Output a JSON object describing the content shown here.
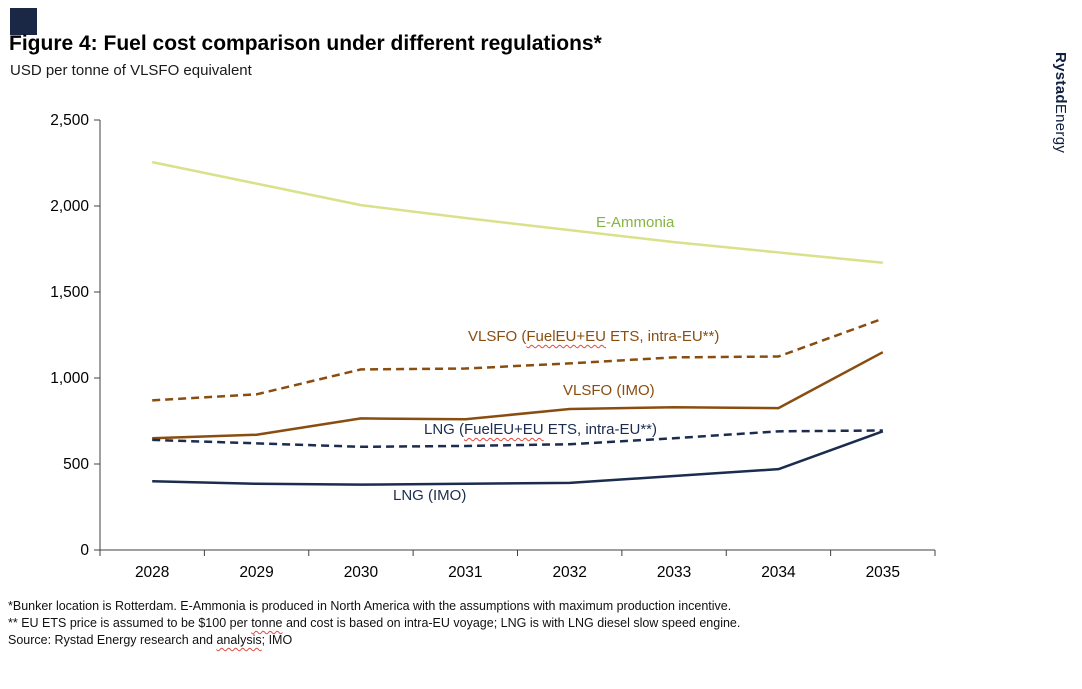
{
  "branding": {
    "name_bold": "Rystad",
    "name_regular": "Energy"
  },
  "chart_data": {
    "type": "line",
    "title": "Figure 4: Fuel cost comparison under different regulations*",
    "subtitle": "USD per tonne of VLSFO equivalent",
    "x": [
      2028,
      2029,
      2030,
      2031,
      2032,
      2033,
      2034,
      2035
    ],
    "ylim": [
      0,
      2500
    ],
    "yticks": [
      0,
      500,
      1000,
      1500,
      2000,
      2500
    ],
    "ytick_labels": [
      "0",
      "500",
      "1,000",
      "1,500",
      "2,000",
      "2,500"
    ],
    "grid": false,
    "legend": "inline-labels",
    "series": [
      {
        "name": "E-Ammonia",
        "color": "#d9e18b",
        "style": "solid",
        "values": [
          2255,
          2130,
          2005,
          1930,
          1860,
          1790,
          1730,
          1670
        ]
      },
      {
        "name": "VLSFO (FuelEU+EU ETS, intra-EU**)",
        "color": "#8a4d10",
        "style": "dashed",
        "values": [
          870,
          905,
          1050,
          1055,
          1085,
          1120,
          1125,
          1345
        ]
      },
      {
        "name": "VLSFO (IMO)",
        "color": "#8a4d10",
        "style": "solid",
        "values": [
          650,
          670,
          765,
          760,
          820,
          830,
          825,
          1150
        ]
      },
      {
        "name": "LNG (FuelEU+EU ETS, intra-EU**)",
        "color": "#1b2c4e",
        "style": "dashed",
        "values": [
          640,
          620,
          600,
          605,
          615,
          650,
          690,
          695
        ]
      },
      {
        "name": "LNG (IMO)",
        "color": "#1b2c4e",
        "style": "solid",
        "values": [
          400,
          385,
          380,
          385,
          390,
          430,
          470,
          690
        ]
      }
    ],
    "annotations": [
      {
        "id": "e-ammonia",
        "parts": [
          {
            "t": "E-Ammonia",
            "sqg": false
          }
        ]
      },
      {
        "id": "vlsfo-eu",
        "parts": [
          {
            "t": "VLSFO (",
            "sqg": false
          },
          {
            "t": "FuelEU+EU",
            "sqg": true
          },
          {
            "t": " ETS, intra-EU**)",
            "sqg": false
          }
        ]
      },
      {
        "id": "vlsfo-imo",
        "parts": [
          {
            "t": "VLSFO (IMO)",
            "sqg": false
          }
        ]
      },
      {
        "id": "lng-eu",
        "parts": [
          {
            "t": "LNG (",
            "sqg": false
          },
          {
            "t": "FuelEU+EU",
            "sqg": true
          },
          {
            "t": " ETS, intra-EU**)",
            "sqg": false
          }
        ]
      },
      {
        "id": "lng-imo",
        "parts": [
          {
            "t": "LNG (IMO)",
            "sqg": false
          }
        ]
      }
    ]
  },
  "footnotes": [
    {
      "parts": [
        {
          "t": "*Bunker location is Rotterdam. E-Ammonia is produced in North America with the assumptions with maximum production incentive.",
          "sqg": false
        }
      ]
    },
    {
      "parts": [
        {
          "t": "** EU ETS price is assumed to be $100 per ",
          "sqg": false
        },
        {
          "t": "tonne",
          "sqg": true
        },
        {
          "t": " and cost is based on intra-EU voyage; LNG is with LNG diesel slow speed engine.",
          "sqg": false
        }
      ]
    },
    {
      "parts": [
        {
          "t": "Source: Rystad Energy research and ",
          "sqg": false
        },
        {
          "t": "analysis",
          "sqg": true
        },
        {
          "t": "; IMO",
          "sqg": false
        }
      ]
    }
  ]
}
